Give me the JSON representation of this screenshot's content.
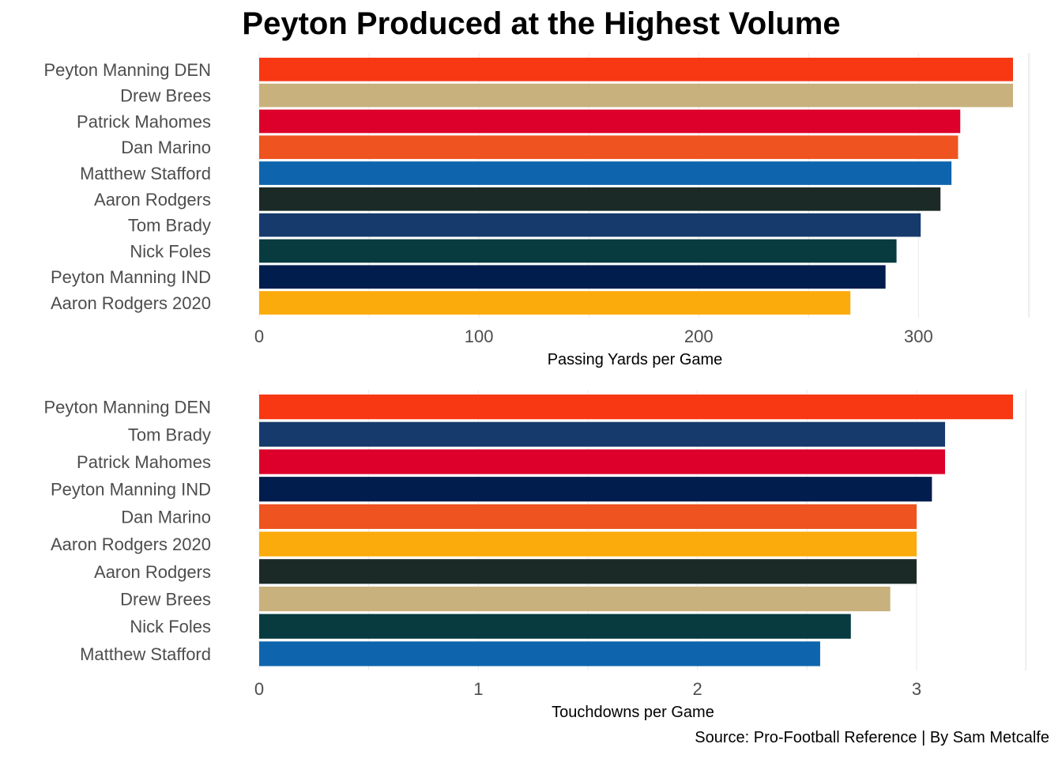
{
  "title": "Peyton Produced at the Highest Volume",
  "caption": "Source: Pro-Football Reference | By Sam Metcalfe",
  "colors": {
    "Peyton Manning DEN": "#f83813",
    "Drew Brees": "#c9b17d",
    "Patrick Mahomes": "#dc002a",
    "Dan Marino": "#ee5320",
    "Matthew Stafford": "#0e65ad",
    "Aaron Rodgers": "#1b2a26",
    "Tom Brady": "#163a6c",
    "Nick Foles": "#073b40",
    "Peyton Manning IND": "#011d4d",
    "Aaron Rodgers 2020": "#fbab0b"
  },
  "chart_data": [
    {
      "type": "bar",
      "orientation": "horizontal",
      "xlabel": "Passing Yards per Game",
      "xlim": [
        0,
        350
      ],
      "ticks": [
        0,
        100,
        200,
        300
      ],
      "categories": [
        "Peyton Manning DEN",
        "Drew Brees",
        "Patrick Mahomes",
        "Dan Marino",
        "Matthew Stafford",
        "Aaron Rodgers",
        "Tom Brady",
        "Nick Foles",
        "Peyton Manning IND",
        "Aaron Rodgers 2020"
      ],
      "values": [
        343,
        343,
        319,
        318,
        315,
        310,
        301,
        290,
        285,
        269
      ]
    },
    {
      "type": "bar",
      "orientation": "horizontal",
      "xlabel": "Touchdowns per Game",
      "xlim": [
        0,
        3.5
      ],
      "ticks": [
        0,
        1,
        2,
        3
      ],
      "categories": [
        "Peyton Manning DEN",
        "Tom Brady",
        "Patrick Mahomes",
        "Peyton Manning IND",
        "Dan Marino",
        "Aaron Rodgers 2020",
        "Aaron Rodgers",
        "Drew Brees",
        "Nick Foles",
        "Matthew Stafford"
      ],
      "values": [
        3.44,
        3.13,
        3.13,
        3.07,
        3.0,
        3.0,
        3.0,
        2.88,
        2.7,
        2.56
      ]
    }
  ]
}
